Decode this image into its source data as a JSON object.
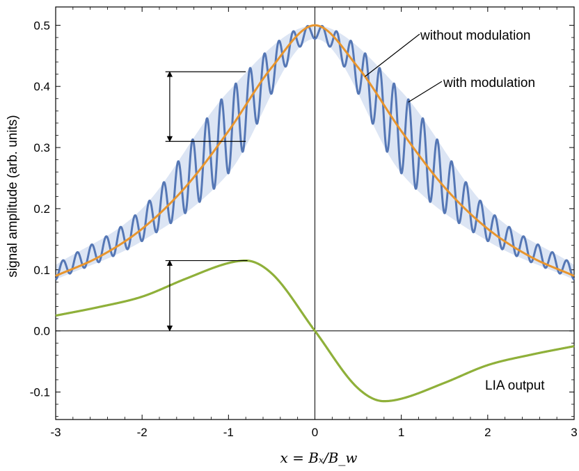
{
  "chart_data": {
    "type": "line",
    "xlabel": "x = Bₓ/B_w",
    "ylabel": "signal amplitude (arb. units)",
    "xlim": [
      -3,
      3
    ],
    "ylim": [
      -0.145,
      0.53
    ],
    "x_ticks": [
      "-3",
      "-2",
      "-1",
      "0",
      "1",
      "2",
      "3"
    ],
    "y_ticks": [
      "-0.1",
      "0.0",
      "0.1",
      "0.2",
      "0.3",
      "0.4",
      "0.5"
    ],
    "grid": false,
    "series": [
      {
        "name": "without modulation",
        "color": "#e8952d",
        "x": [
          -3,
          -2.5,
          -2,
          -1.5,
          -1,
          -0.5,
          0,
          0.5,
          1,
          1.5,
          2,
          2.5,
          3
        ],
        "y": [
          0.09,
          0.121,
          0.167,
          0.235,
          0.327,
          0.431,
          0.5,
          0.431,
          0.327,
          0.235,
          0.167,
          0.121,
          0.09
        ]
      },
      {
        "name": "with modulation",
        "color": "#5577b5",
        "band_color": "#dce5f4",
        "oscillation_count": 36,
        "x": [
          -3,
          -2,
          -1,
          0,
          1,
          2,
          3
        ],
        "y_upper": [
          0.108,
          0.2,
          0.392,
          0.5,
          0.392,
          0.2,
          0.108
        ],
        "y_lower": [
          0.084,
          0.147,
          0.258,
          0.478,
          0.258,
          0.147,
          0.084
        ]
      },
      {
        "name": "LIA output",
        "color": "#8fb03a",
        "x": [
          -3,
          -2.5,
          -2,
          -1.5,
          -1,
          -0.8,
          -0.5,
          0,
          0.5,
          0.8,
          1,
          1.5,
          2,
          2.5,
          3
        ],
        "y": [
          0.025,
          0.039,
          0.056,
          0.085,
          0.111,
          0.115,
          0.094,
          0,
          -0.094,
          -0.115,
          -0.111,
          -0.085,
          -0.056,
          -0.039,
          -0.025
        ]
      }
    ],
    "annotations": [
      {
        "text": "without modulation",
        "target": "without modulation"
      },
      {
        "text": "with modulation",
        "target": "with modulation"
      },
      {
        "text": "LIA output",
        "target": "LIA output"
      }
    ],
    "arrows": [
      {
        "type": "double",
        "y_from": 0.31,
        "y_to": 0.424
      },
      {
        "type": "double",
        "y_from": 0.0,
        "y_to": 0.115
      }
    ]
  }
}
